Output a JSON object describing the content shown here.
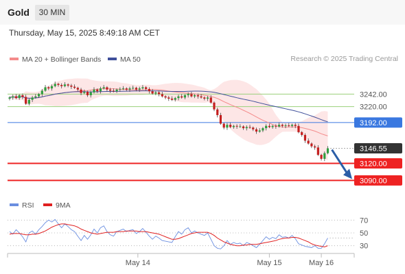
{
  "header": {
    "symbol": "Gold",
    "timeframe": "30 MIN",
    "datetime": "Thursday, May 15, 2025 8:49:18 AM CET",
    "credit": "Research © 2025 Trading Central"
  },
  "colors": {
    "bollinger": "#f48b8b",
    "band_fill": "#fde3e3",
    "ma50": "#3f4f9a",
    "up": "#2e9e3e",
    "down": "#c41f1f",
    "support": "#ee2222",
    "resistance": "#9ad07a",
    "pivot": "#3a78e0",
    "price_badge": "#333333",
    "arrow": "#2b5ea7",
    "rsi": "#6a8ee0",
    "rsi_ma": "#e02020"
  },
  "chart_data": [
    {
      "type": "candlestick",
      "legend": [
        {
          "name": "MA 20 + Bollinger Bands",
          "color": "#f48b8b"
        },
        {
          "name": "MA 50",
          "color": "#3f4f9a"
        }
      ],
      "ylim": [
        3070,
        3275
      ],
      "y_ticks": [
        3242.0,
        3220.0,
        3192.0,
        3146.55,
        3120.0,
        3090.0
      ],
      "y_tick_labels": [
        "3242.00",
        "3220.00",
        "3192.00",
        "3146.55",
        "3120.00",
        "3090.00"
      ],
      "levels": [
        {
          "label": "3242.00",
          "value": 3242.0,
          "kind": "resistance"
        },
        {
          "label": "3220.00",
          "value": 3220.0,
          "kind": "resistance"
        },
        {
          "label": "3192.00",
          "value": 3192.0,
          "kind": "pivot"
        },
        {
          "label": "3146.55",
          "value": 3146.55,
          "kind": "last"
        },
        {
          "label": "3120.00",
          "value": 3120.0,
          "kind": "support"
        },
        {
          "label": "3090.00",
          "value": 3090.0,
          "kind": "support"
        }
      ],
      "x_tick_labels": [
        {
          "label": "May 14",
          "bar": 39.5
        },
        {
          "label": "May 15",
          "bar": 80
        },
        {
          "label": "May 16",
          "bar": 96
        }
      ],
      "close": [
        3236,
        3238,
        3235,
        3240,
        3237,
        3225,
        3232,
        3236,
        3238,
        3242,
        3248,
        3254,
        3252,
        3256,
        3260,
        3258,
        3256,
        3259,
        3257,
        3255,
        3253,
        3250,
        3244,
        3246,
        3240,
        3245,
        3250,
        3247,
        3252,
        3254,
        3250,
        3248,
        3247,
        3250,
        3251,
        3252,
        3250,
        3252,
        3253,
        3250,
        3252,
        3254,
        3251,
        3247,
        3243,
        3245,
        3242,
        3238,
        3236,
        3234,
        3232,
        3235,
        3238,
        3236,
        3240,
        3242,
        3238,
        3240,
        3238,
        3236,
        3234,
        3236,
        3227,
        3215,
        3205,
        3190,
        3183,
        3188,
        3184,
        3186,
        3185,
        3185,
        3182,
        3184,
        3183,
        3180,
        3176,
        3178,
        3182,
        3186,
        3184,
        3186,
        3185,
        3188,
        3186,
        3187,
        3186,
        3188,
        3186,
        3175,
        3170,
        3160,
        3155,
        3150,
        3148,
        3135,
        3128,
        3138,
        3146.55
      ],
      "arrow": {
        "from_value": 3146.55,
        "to_value": 3090.0
      },
      "last_price": 3146.55
    },
    {
      "type": "line",
      "legend": [
        {
          "name": "RSI",
          "color": "#6a8ee0"
        },
        {
          "name": "9MA",
          "color": "#e02020"
        }
      ],
      "ylim": [
        20,
        80
      ],
      "y_ticks": [
        70,
        50,
        30
      ],
      "y_tick_labels": [
        "70",
        "50",
        "30"
      ],
      "rsi": [
        52,
        48,
        55,
        50,
        44,
        36,
        50,
        53,
        48,
        55,
        60,
        66,
        70,
        67,
        71,
        64,
        58,
        64,
        60,
        55,
        52,
        45,
        38,
        46,
        40,
        47,
        56,
        50,
        58,
        61,
        52,
        47,
        45,
        52,
        54,
        56,
        52,
        54,
        55,
        49,
        52,
        57,
        51,
        45,
        40,
        45,
        42,
        38,
        37,
        36,
        35,
        44,
        52,
        48,
        55,
        58,
        50,
        53,
        50,
        48,
        46,
        50,
        40,
        30,
        26,
        25,
        30,
        38,
        32,
        35,
        33,
        34,
        30,
        35,
        33,
        30,
        27,
        32,
        38,
        44,
        40,
        43,
        41,
        47,
        43,
        44,
        42,
        46,
        41,
        33,
        31,
        29,
        28,
        27,
        30,
        26,
        26,
        33,
        42
      ],
      "rsi_ma": [
        48,
        49,
        49,
        49,
        48,
        47,
        47,
        48,
        48,
        49,
        51,
        53,
        56,
        59,
        61,
        63,
        64,
        64,
        63,
        62,
        61,
        59,
        56,
        54,
        52,
        50,
        49,
        48,
        49,
        50,
        51,
        51,
        51,
        52,
        52,
        52,
        53,
        53,
        53,
        53,
        52,
        52,
        52,
        51,
        50,
        49,
        48,
        46,
        44,
        42,
        40,
        40,
        41,
        43,
        45,
        47,
        49,
        50,
        51,
        51,
        51,
        51,
        49,
        46,
        42,
        39,
        36,
        34,
        32,
        31,
        30,
        30,
        31,
        31,
        32,
        32,
        32,
        33,
        34,
        35,
        36,
        37,
        38,
        40,
        41,
        42,
        42,
        43,
        43,
        42,
        40,
        38,
        36,
        33,
        31,
        30,
        29,
        28,
        30
      ]
    }
  ]
}
